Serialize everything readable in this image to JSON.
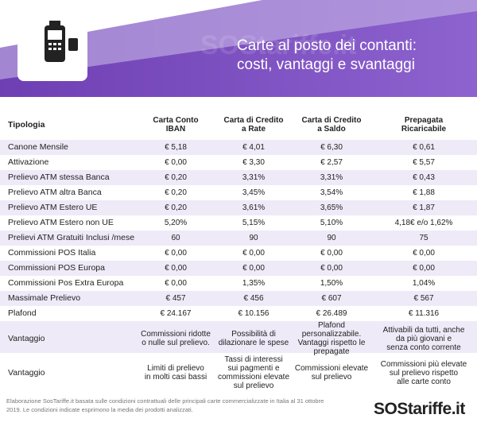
{
  "header": {
    "title": "Carte al posto dei contanti:\ncosti, vantaggi e svantaggi",
    "watermark": "SOStariffe.it"
  },
  "table": {
    "columns": [
      "Tipologia",
      "Carta Conto\nIBAN",
      "Carta di Credito\na Rate",
      "Carta di Credito\na Saldo",
      "Prepagata\nRicaricabile"
    ],
    "rows": [
      [
        "Canone Mensile",
        "€ 5,18",
        "€ 4,01",
        "€ 6,30",
        "€ 0,61"
      ],
      [
        "Attivazione",
        "€ 0,00",
        "€ 3,30",
        "€ 2,57",
        "€ 5,57"
      ],
      [
        "Prelievo ATM stessa Banca",
        "€ 0,20",
        "3,31%",
        "3,31%",
        "€ 0,43"
      ],
      [
        "Prelievo ATM altra Banca",
        "€ 0,20",
        "3,45%",
        "3,54%",
        "€ 1,88"
      ],
      [
        "Prelievo ATM Estero UE",
        "€ 0,20",
        "3,61%",
        "3,65%",
        "€ 1,87"
      ],
      [
        "Prelievo ATM Estero non UE",
        "5,20%",
        "5,15%",
        "5,10%",
        "4,18€ e/o 1,62%"
      ],
      [
        "Prelievi ATM Gratuiti Inclusi /mese",
        "60",
        "90",
        "90",
        "75"
      ],
      [
        "Commissioni POS Italia",
        "€ 0,00",
        "€ 0,00",
        "€ 0,00",
        "€ 0,00"
      ],
      [
        "Commissioni POS Europa",
        "€ 0,00",
        "€ 0,00",
        "€ 0,00",
        "€ 0,00"
      ],
      [
        "Commissioni Pos Extra Europa",
        "€ 0,00",
        "1,35%",
        "1,50%",
        "1,04%"
      ],
      [
        "Massimale Prelievo",
        "€ 457",
        "€ 456",
        "€ 607",
        "€ 567"
      ],
      [
        "Plafond",
        "€ 24.167",
        "€ 10.156",
        "€ 26.489",
        "€ 11.316"
      ],
      [
        "Vantaggio",
        "Commissioni ridotte\no nulle sul prelievo.",
        "Possibilità di\ndilazionare le spese",
        "Plafond personalizzabile.\nVantaggi rispetto le\nprepagate",
        "Attivabili da tutti, anche\nda più giovani e\nsenza conto corrente"
      ],
      [
        "Vantaggio",
        "Limiti di prelievo\nin molti casi bassi",
        "Tassi di interessi\nsui pagmenti e\ncommissioni elevate\nsul prelievo",
        "Commissioni elevate\nsul prelievo",
        "Commissioni più elevate\nsul prelievo rispetto\nalle carte conto"
      ]
    ]
  },
  "footer": {
    "note": "Elaborazione SosTariffe.it basata sulle condizioni contrattuali delle principali carte commercializzate in Italia al 31 ottobre 2019. Le condizioni indicate esprimono la media dei prodotti analizzati.",
    "logo": "SOStariffe.it"
  }
}
